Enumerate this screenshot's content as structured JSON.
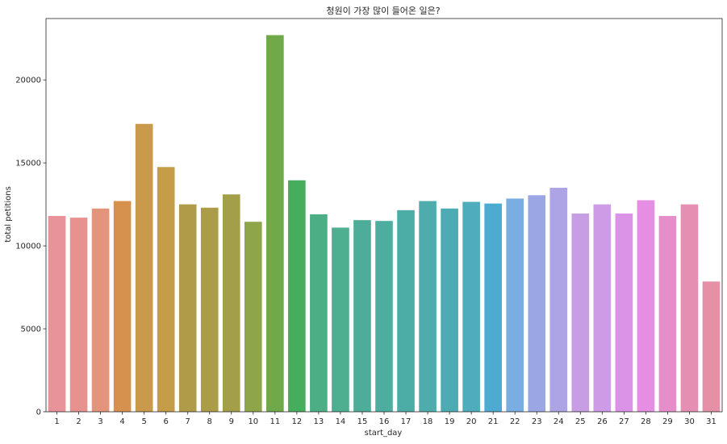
{
  "chart_data": {
    "type": "bar",
    "title": "청원이 가장 많이 들어온 일은?",
    "xlabel": "start_day",
    "ylabel": "total petitions",
    "ylim": [
      0,
      23700
    ],
    "yticks": [
      0,
      5000,
      10000,
      15000,
      20000
    ],
    "grid": false,
    "legend": "none",
    "categories": [
      "1",
      "2",
      "3",
      "4",
      "5",
      "6",
      "7",
      "8",
      "9",
      "10",
      "11",
      "12",
      "13",
      "14",
      "15",
      "16",
      "17",
      "18",
      "19",
      "20",
      "21",
      "22",
      "23",
      "24",
      "25",
      "26",
      "27",
      "28",
      "29",
      "30",
      "31"
    ],
    "values": [
      11800,
      11700,
      12250,
      12700,
      17350,
      14750,
      12500,
      12300,
      13100,
      11450,
      22700,
      13950,
      11900,
      11100,
      11550,
      11500,
      12150,
      12700,
      12250,
      12650,
      12550,
      12850,
      13050,
      13500,
      11950,
      12500,
      11950,
      12750,
      11800,
      12500,
      7850
    ],
    "colors": [
      "#e8929a",
      "#e89290",
      "#e3947a",
      "#d6914e",
      "#c99a4c",
      "#c59d48",
      "#b09c48",
      "#aa9c48",
      "#a39e48",
      "#8ea549",
      "#6fa94a",
      "#45ad5c",
      "#4cae84",
      "#4dae90",
      "#4dad99",
      "#4dae9f",
      "#4caca6",
      "#4eacad",
      "#4dabb3",
      "#4eacbc",
      "#4daad0",
      "#7aaee2",
      "#9aa7e4",
      "#ada4e5",
      "#c79ee3",
      "#ce9be6",
      "#da93e6",
      "#e58ee4",
      "#e58ec9",
      "#e590b3",
      "#e690a8"
    ]
  }
}
